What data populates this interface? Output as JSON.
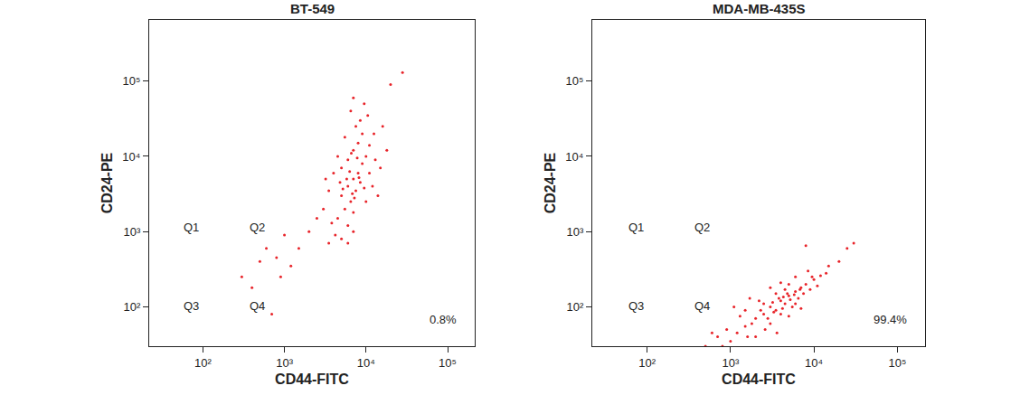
{
  "chart_data": [
    {
      "type": "scatter",
      "title": "BT-549",
      "x_label": "CD44-FITC",
      "y_label": "CD24-PE",
      "log": true,
      "color": "#e8242a",
      "marker": "circle",
      "xlim": [
        22,
        215000
      ],
      "ylim": [
        30,
        650000
      ],
      "xticks": [
        {
          "value": 100,
          "label": "10²"
        },
        {
          "value": 1000,
          "label": "10³"
        },
        {
          "value": 10000,
          "label": "10⁴"
        },
        {
          "value": 100000,
          "label": "10⁵"
        }
      ],
      "yticks": [
        {
          "value": 100,
          "label": "10²"
        },
        {
          "value": 1000,
          "label": "10³"
        },
        {
          "value": 10000,
          "label": "10⁴"
        },
        {
          "value": 100000,
          "label": "10⁵"
        }
      ],
      "quadrants": {
        "x": 167,
        "y": 355,
        "labels": [
          "Q1",
          "Q2",
          "Q3",
          "Q4"
        ]
      },
      "annotation": {
        "text": "0.8%",
        "quadrant": "Q4"
      },
      "points": [
        [
          5000,
          3000
        ],
        [
          6000,
          4000
        ],
        [
          7000,
          5000
        ],
        [
          8000,
          6000
        ],
        [
          6500,
          2500
        ],
        [
          5500,
          2000
        ],
        [
          7500,
          3500
        ],
        [
          9000,
          8000
        ],
        [
          4500,
          1500
        ],
        [
          6000,
          1200
        ],
        [
          7000,
          1800
        ],
        [
          8500,
          4500
        ],
        [
          10000,
          10000
        ],
        [
          5000,
          7000
        ],
        [
          6000,
          9000
        ],
        [
          7000,
          12000
        ],
        [
          8000,
          15000
        ],
        [
          9000,
          20000
        ],
        [
          7500,
          25000
        ],
        [
          8500,
          30000
        ],
        [
          6500,
          40000
        ],
        [
          9500,
          50000
        ],
        [
          5500,
          18000
        ],
        [
          4500,
          10000
        ],
        [
          4000,
          6000
        ],
        [
          3500,
          3500
        ],
        [
          3000,
          2000
        ],
        [
          3800,
          1300
        ],
        [
          11000,
          6000
        ],
        [
          12000,
          4000
        ],
        [
          13000,
          9000
        ],
        [
          10000,
          2500
        ],
        [
          11000,
          14000
        ],
        [
          4200,
          900
        ],
        [
          5000,
          800
        ],
        [
          6000,
          700
        ],
        [
          7000,
          1000
        ],
        [
          3500,
          700
        ],
        [
          2500,
          1500
        ],
        [
          2000,
          1000
        ],
        [
          15000,
          7000
        ],
        [
          18000,
          12000
        ],
        [
          14000,
          3000
        ],
        [
          6800,
          3200
        ],
        [
          7200,
          2800
        ],
        [
          5800,
          5000
        ],
        [
          8200,
          5200
        ],
        [
          6300,
          6300
        ],
        [
          9500,
          3800
        ],
        [
          5200,
          3700
        ],
        [
          4800,
          4500
        ],
        [
          6600,
          11000
        ],
        [
          7800,
          9500
        ],
        [
          3200,
          5000
        ],
        [
          12500,
          20000
        ],
        [
          16000,
          25000
        ],
        [
          10500,
          35000
        ],
        [
          7000,
          60000
        ],
        [
          28000,
          130000
        ],
        [
          20000,
          90000
        ],
        [
          300,
          250
        ],
        [
          400,
          180
        ],
        [
          600,
          600
        ],
        [
          800,
          450
        ],
        [
          1000,
          900
        ],
        [
          1200,
          350
        ],
        [
          500,
          400
        ],
        [
          1500,
          600
        ],
        [
          900,
          250
        ],
        [
          700,
          80
        ]
      ]
    },
    {
      "type": "scatter",
      "title": "MDA-MB-435S",
      "x_label": "CD44-FITC",
      "y_label": "CD24-PE",
      "log": true,
      "color": "#e8242a",
      "marker": "circle",
      "xlim": [
        22,
        215000
      ],
      "ylim": [
        30,
        650000
      ],
      "xticks": [
        {
          "value": 100,
          "label": "10²"
        },
        {
          "value": 1000,
          "label": "10³"
        },
        {
          "value": 10000,
          "label": "10⁴"
        },
        {
          "value": 100000,
          "label": "10⁵"
        }
      ],
      "yticks": [
        {
          "value": 100,
          "label": "10²"
        },
        {
          "value": 1000,
          "label": "10³"
        },
        {
          "value": 10000,
          "label": "10⁴"
        },
        {
          "value": 100000,
          "label": "10⁵"
        }
      ],
      "quadrants": {
        "x": 167,
        "y": 355,
        "labels": [
          "Q1",
          "Q2",
          "Q3",
          "Q4"
        ]
      },
      "annotation": {
        "text": "99.4%",
        "quadrant": "Q4"
      },
      "points": [
        [
          3000,
          100
        ],
        [
          4000,
          120
        ],
        [
          5000,
          140
        ],
        [
          6000,
          160
        ],
        [
          3500,
          90
        ],
        [
          4500,
          110
        ],
        [
          2500,
          80
        ],
        [
          2000,
          70
        ],
        [
          1500,
          55
        ],
        [
          1200,
          45
        ],
        [
          8000,
          200
        ],
        [
          10000,
          230
        ],
        [
          12000,
          260
        ],
        [
          7000,
          180
        ],
        [
          5500,
          100
        ],
        [
          3000,
          60
        ],
        [
          4000,
          80
        ],
        [
          6000,
          110
        ],
        [
          2500,
          110
        ],
        [
          3500,
          150
        ],
        [
          4500,
          170
        ],
        [
          5000,
          200
        ],
        [
          2000,
          40
        ],
        [
          1000,
          35
        ],
        [
          1500,
          90
        ],
        [
          2200,
          120
        ],
        [
          6500,
          130
        ],
        [
          7500,
          150
        ],
        [
          9000,
          170
        ],
        [
          3800,
          130
        ],
        [
          4200,
          95
        ],
        [
          2800,
          70
        ],
        [
          3200,
          115
        ],
        [
          5200,
          125
        ],
        [
          4800,
          150
        ],
        [
          1800,
          60
        ],
        [
          1300,
          75
        ],
        [
          900,
          50
        ],
        [
          700,
          40
        ],
        [
          800,
          30
        ],
        [
          2600,
          50
        ],
        [
          3600,
          45
        ],
        [
          5000,
          75
        ],
        [
          7000,
          95
        ],
        [
          11000,
          190
        ],
        [
          14000,
          280
        ],
        [
          20000,
          400
        ],
        [
          25000,
          600
        ],
        [
          15000,
          350
        ],
        [
          8500,
          300
        ],
        [
          6000,
          250
        ],
        [
          3000,
          180
        ],
        [
          4000,
          210
        ],
        [
          9500,
          250
        ],
        [
          2300,
          90
        ],
        [
          3300,
          85
        ],
        [
          4300,
          135
        ],
        [
          5800,
          145
        ],
        [
          6800,
          170
        ],
        [
          1600,
          40
        ],
        [
          500,
          30
        ],
        [
          600,
          45
        ],
        [
          1100,
          100
        ],
        [
          8000,
          650
        ],
        [
          1700,
          130
        ],
        [
          30000,
          700
        ]
      ]
    }
  ]
}
